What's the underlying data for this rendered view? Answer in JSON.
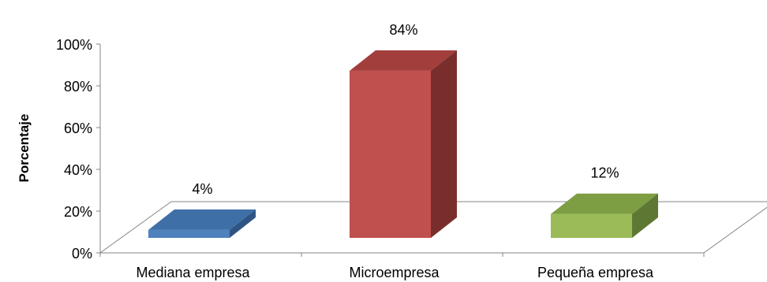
{
  "chart_data": {
    "type": "bar",
    "categories": [
      "Mediana empresa",
      "Microempresa",
      "Pequeña empresa"
    ],
    "values": [
      4,
      84,
      12
    ],
    "data_labels": [
      "4%",
      "84%",
      "12%"
    ],
    "ylabel": "Porcentaje",
    "yticks": [
      "0%",
      "20%",
      "40%",
      "60%",
      "80%",
      "100%"
    ],
    "ylim": [
      0,
      100
    ],
    "grid": false,
    "legend": "none",
    "style": "3d",
    "colors": [
      {
        "front": "#4F81BD",
        "top": "#3F6FA7",
        "side": "#2F5483"
      },
      {
        "front": "#C0504D",
        "top": "#A23E3B",
        "side": "#7A2E2C"
      },
      {
        "front": "#9BBB59",
        "top": "#7E9E44",
        "side": "#5E7834"
      }
    ],
    "axis_color": "#868686"
  }
}
